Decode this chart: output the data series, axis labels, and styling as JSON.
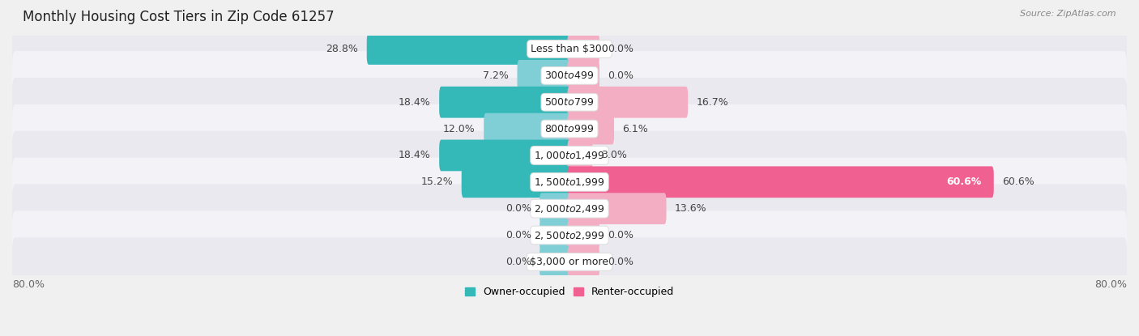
{
  "title": "Monthly Housing Cost Tiers in Zip Code 61257",
  "source": "Source: ZipAtlas.com",
  "categories": [
    "Less than $300",
    "$300 to $499",
    "$500 to $799",
    "$800 to $999",
    "$1,000 to $1,499",
    "$1,500 to $1,999",
    "$2,000 to $2,499",
    "$2,500 to $2,999",
    "$3,000 or more"
  ],
  "owner_values": [
    28.8,
    7.2,
    18.4,
    12.0,
    18.4,
    15.2,
    0.0,
    0.0,
    0.0
  ],
  "renter_values": [
    0.0,
    0.0,
    16.7,
    6.1,
    3.0,
    60.6,
    13.6,
    0.0,
    0.0
  ],
  "owner_color": "#34b8b8",
  "owner_color_light": "#80ced6",
  "renter_color": "#f06090",
  "renter_color_light": "#f4aec4",
  "x_min": -80.0,
  "x_max": 80.0,
  "background_color": "#f0f0f0",
  "row_color_light": "#f8f8f8",
  "row_color_dark": "#e8e8e8",
  "title_fontsize": 12,
  "label_fontsize": 9,
  "value_fontsize": 9,
  "source_fontsize": 8,
  "legend_fontsize": 9,
  "stub_size": 4.0
}
